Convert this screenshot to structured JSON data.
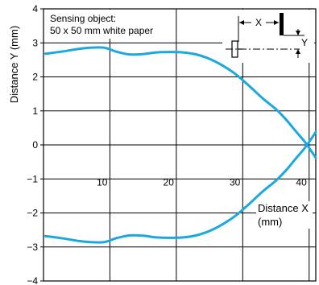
{
  "chart_data": {
    "type": "line",
    "ylabel": "Distance Y (mm)",
    "xlabel_line1": "Distance X",
    "xlabel_line2": "(mm)",
    "xlim": [
      0,
      41
    ],
    "ylim": [
      -4,
      4
    ],
    "x_ticks": [
      10,
      20,
      30,
      40
    ],
    "y_ticks": [
      4,
      3,
      2,
      1,
      0,
      -1,
      -2,
      -3,
      -4
    ],
    "y_tick_labels": [
      "4",
      "3",
      "2",
      "1",
      "0",
      "−1",
      "−2",
      "−3",
      "−4"
    ],
    "grid": true,
    "annotation_line1": "Sensing object:",
    "annotation_line2": "50 x 50 mm white paper",
    "inset": {
      "x_label": "X",
      "y_label": "Y"
    },
    "curve_color": "#1ba8e0",
    "series": [
      {
        "values": [
          [
            0.3,
            2.68
          ],
          [
            3,
            2.75
          ],
          [
            6,
            2.84
          ],
          [
            9,
            2.86
          ],
          [
            11,
            2.74
          ],
          [
            13,
            2.66
          ],
          [
            15,
            2.67
          ],
          [
            17,
            2.72
          ],
          [
            19,
            2.73
          ],
          [
            21,
            2.72
          ],
          [
            23,
            2.66
          ],
          [
            25,
            2.53
          ],
          [
            27,
            2.33
          ],
          [
            29,
            2.07
          ],
          [
            31,
            1.73
          ],
          [
            33,
            1.37
          ],
          [
            35,
            1.05
          ],
          [
            36.5,
            0.75
          ],
          [
            38,
            0.4
          ],
          [
            39.5,
            0.05
          ],
          [
            41,
            -0.38
          ]
        ]
      },
      {
        "values": [
          [
            0.3,
            -2.68
          ],
          [
            3,
            -2.75
          ],
          [
            6,
            -2.84
          ],
          [
            9,
            -2.86
          ],
          [
            11,
            -2.74
          ],
          [
            13,
            -2.66
          ],
          [
            15,
            -2.67
          ],
          [
            17,
            -2.72
          ],
          [
            19,
            -2.73
          ],
          [
            21,
            -2.72
          ],
          [
            23,
            -2.66
          ],
          [
            25,
            -2.53
          ],
          [
            27,
            -2.33
          ],
          [
            29,
            -2.07
          ],
          [
            31,
            -1.73
          ],
          [
            33,
            -1.37
          ],
          [
            35,
            -1.05
          ],
          [
            36.5,
            -0.75
          ],
          [
            38,
            -0.4
          ],
          [
            39.5,
            -0.05
          ],
          [
            41,
            0.38
          ]
        ]
      }
    ]
  }
}
